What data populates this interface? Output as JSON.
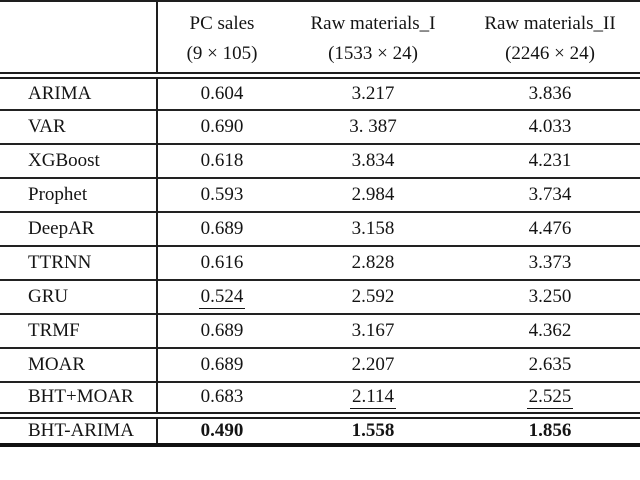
{
  "page": {
    "background_color": "#ffffff",
    "text_color": "#141414",
    "rule_color": "#1e1e1e"
  },
  "table": {
    "description": "Model comparison results table with three dataset columns",
    "corner_label": "",
    "columns": [
      {
        "name": "PC sales",
        "shape": "(9 × 105)"
      },
      {
        "name": "Raw materials_I",
        "shape": "(1533 × 24)"
      },
      {
        "name": "Raw materials_II",
        "shape": "(2246 × 24)"
      }
    ],
    "rows": [
      {
        "label": "ARIMA",
        "values": [
          "0.604",
          "3.217",
          "3.836"
        ]
      },
      {
        "label": "VAR",
        "values": [
          "0.690",
          "3. 387",
          "4.033"
        ]
      },
      {
        "label": "XGBoost",
        "values": [
          "0.618",
          "3.834",
          "4.231"
        ]
      },
      {
        "label": "Prophet",
        "values": [
          "0.593",
          "2.984",
          "3.734"
        ]
      },
      {
        "label": "DeepAR",
        "values": [
          "0.689",
          "3.158",
          "4.476"
        ]
      },
      {
        "label": "TTRNN",
        "values": [
          "0.616",
          "2.828",
          "3.373"
        ]
      },
      {
        "label": "GRU",
        "values": [
          "0.524",
          "2.592",
          "3.250"
        ]
      },
      {
        "label": "TRMF",
        "values": [
          "0.689",
          "3.167",
          "4.362"
        ]
      },
      {
        "label": "MOAR",
        "values": [
          "0.689",
          "2.207",
          "2.635"
        ]
      },
      {
        "label": "BHT+MOAR",
        "values": [
          "0.683",
          "2.114",
          "2.525"
        ]
      }
    ],
    "final_row": {
      "label": "BHT-ARIMA",
      "values": [
        "0.490",
        "1.558",
        "1.856"
      ]
    },
    "formatting": {
      "underlined_cells": [
        {
          "row": "GRU",
          "column": "PC sales",
          "value": "0.524"
        },
        {
          "row": "BHT+MOAR",
          "column": "Raw materials_I",
          "value": "2.114"
        },
        {
          "row": "BHT+MOAR",
          "column": "Raw materials_II",
          "value": "2.525"
        }
      ],
      "bold_cells": [
        {
          "row": "BHT-ARIMA",
          "column": "PC sales",
          "value": "0.490"
        },
        {
          "row": "BHT-ARIMA",
          "column": "Raw materials_I",
          "value": "1.558"
        },
        {
          "row": "BHT-ARIMA",
          "column": "Raw materials_II",
          "value": "1.856"
        }
      ]
    }
  }
}
